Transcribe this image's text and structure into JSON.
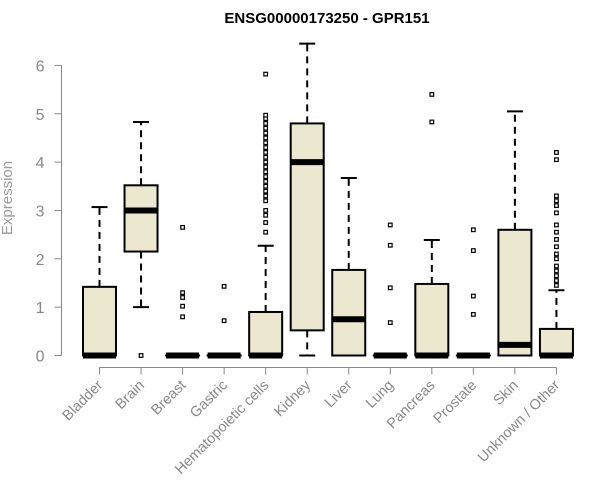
{
  "chart_data": {
    "type": "boxplot",
    "title": "ENSG00000173250 - GPR151",
    "ylabel": "Expression",
    "ylim": [
      0,
      6.5
    ],
    "yticks": [
      0,
      1,
      2,
      3,
      4,
      5,
      6
    ],
    "grid": false,
    "box_fill": "#ece7cf",
    "stroke_color": "#000000",
    "axis_color": "#888888",
    "categories": [
      "Bladder",
      "Brain",
      "Breast",
      "Gastric",
      "Hematopoietic cells",
      "Kidney",
      "Liver",
      "Lung",
      "Pancreas",
      "Prostate",
      "Skin",
      "Unknown / Other"
    ],
    "boxes": [
      {
        "category": "Bladder",
        "whisker_low": 0,
        "q1": 0,
        "median": 0,
        "q3": 1.42,
        "whisker_high": 3.07,
        "outliers": []
      },
      {
        "category": "Brain",
        "whisker_low": 1.0,
        "q1": 2.15,
        "median": 3.0,
        "q3": 3.52,
        "whisker_high": 4.83,
        "outliers": [
          0
        ]
      },
      {
        "category": "Breast",
        "whisker_low": 0,
        "q1": 0,
        "median": 0,
        "q3": 0,
        "whisker_high": 0,
        "outliers": [
          0.8,
          1.02,
          1.2,
          1.3,
          2.65
        ]
      },
      {
        "category": "Gastric",
        "whisker_low": 0,
        "q1": 0,
        "median": 0,
        "q3": 0,
        "whisker_high": 0,
        "outliers": [
          0.72,
          1.43
        ]
      },
      {
        "category": "Hematopoietic cells",
        "whisker_low": 0,
        "q1": 0,
        "median": 0,
        "q3": 0.9,
        "whisker_high": 2.27,
        "outliers": [
          2.55,
          2.75,
          2.9,
          3.0,
          3.2,
          3.3,
          3.4,
          3.5,
          3.6,
          3.7,
          3.8,
          3.9,
          4.0,
          4.1,
          4.2,
          4.3,
          4.4,
          4.5,
          4.6,
          4.7,
          4.8,
          4.9,
          4.97,
          5.82
        ]
      },
      {
        "category": "Kidney",
        "whisker_low": 0,
        "q1": 0.52,
        "median": 4.0,
        "q3": 4.8,
        "whisker_high": 6.45,
        "outliers": []
      },
      {
        "category": "Liver",
        "whisker_low": 0,
        "q1": 0,
        "median": 0.75,
        "q3": 1.77,
        "whisker_high": 3.67,
        "outliers": []
      },
      {
        "category": "Lung",
        "whisker_low": 0,
        "q1": 0,
        "median": 0,
        "q3": 0,
        "whisker_high": 0,
        "outliers": [
          0.68,
          1.4,
          2.28,
          2.7
        ]
      },
      {
        "category": "Pancreas",
        "whisker_low": 0,
        "q1": 0,
        "median": 0,
        "q3": 1.48,
        "whisker_high": 2.39,
        "outliers": [
          4.83,
          5.4
        ]
      },
      {
        "category": "Prostate",
        "whisker_low": 0,
        "q1": 0,
        "median": 0,
        "q3": 0,
        "whisker_high": 0,
        "outliers": [
          0.85,
          1.23,
          2.17,
          2.6
        ]
      },
      {
        "category": "Skin",
        "whisker_low": 0,
        "q1": 0,
        "median": 0.22,
        "q3": 2.6,
        "whisker_high": 5.05,
        "outliers": []
      },
      {
        "category": "Unknown / Other",
        "whisker_low": 0,
        "q1": 0,
        "median": 0,
        "q3": 0.55,
        "whisker_high": 1.35,
        "outliers": [
          1.45,
          1.55,
          1.65,
          1.75,
          1.85,
          2.0,
          2.1,
          2.25,
          2.4,
          2.55,
          2.7,
          2.95,
          3.1,
          3.2,
          3.3,
          4.05,
          4.2
        ]
      }
    ]
  }
}
